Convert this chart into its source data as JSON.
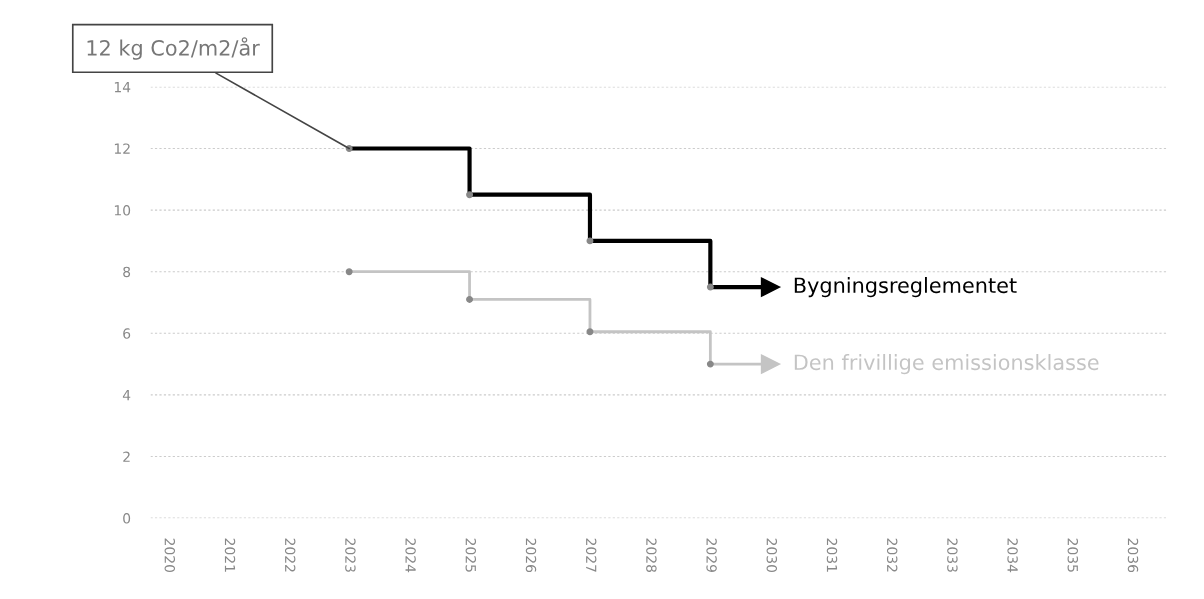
{
  "chart_data": {
    "type": "step",
    "x": [
      2023,
      2025,
      2027,
      2029,
      2030
    ],
    "series": [
      {
        "name": "Bygningsreglementet",
        "color": "#000000",
        "values": [
          12,
          10.5,
          9,
          7.5,
          7.5
        ]
      },
      {
        "name": "Den frivillige emissionsklasse",
        "color": "#c4c4c4",
        "values": [
          8,
          7.1,
          6.05,
          5,
          5
        ]
      }
    ],
    "xlim": [
      2019.7,
      2036.6
    ],
    "xticks": [
      2020,
      2021,
      2022,
      2023,
      2024,
      2025,
      2026,
      2027,
      2028,
      2029,
      2030,
      2031,
      2032,
      2033,
      2034,
      2035,
      2036
    ],
    "ylim": [
      0,
      14
    ],
    "yticks": [
      0,
      2,
      4,
      6,
      8,
      10,
      12,
      14
    ],
    "grid": "y",
    "marker": "circle",
    "line_style": "solid",
    "annotations": [
      {
        "text": "12 kg Co2/m2/år",
        "x": 2023,
        "y": 12
      }
    ]
  }
}
